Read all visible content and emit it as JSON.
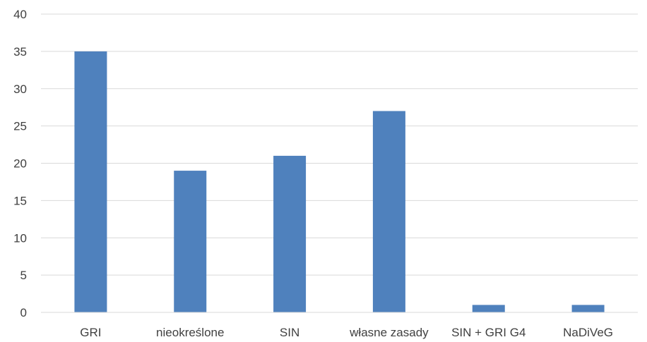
{
  "chart_data": {
    "type": "bar",
    "categories": [
      "GRI",
      "nieokreślone",
      "SIN",
      "własne zasady",
      "SIN + GRI G4",
      "NaDiVeG"
    ],
    "values": [
      35,
      19,
      21,
      27,
      1,
      1
    ],
    "yticks": [
      "0",
      "5",
      "10",
      "15",
      "20",
      "25",
      "30",
      "35",
      "40"
    ],
    "ylim": [
      0,
      40
    ],
    "grid": true,
    "legend": "none",
    "bar_color": "#4f81bd",
    "title": "",
    "xlabel": "",
    "ylabel": ""
  }
}
